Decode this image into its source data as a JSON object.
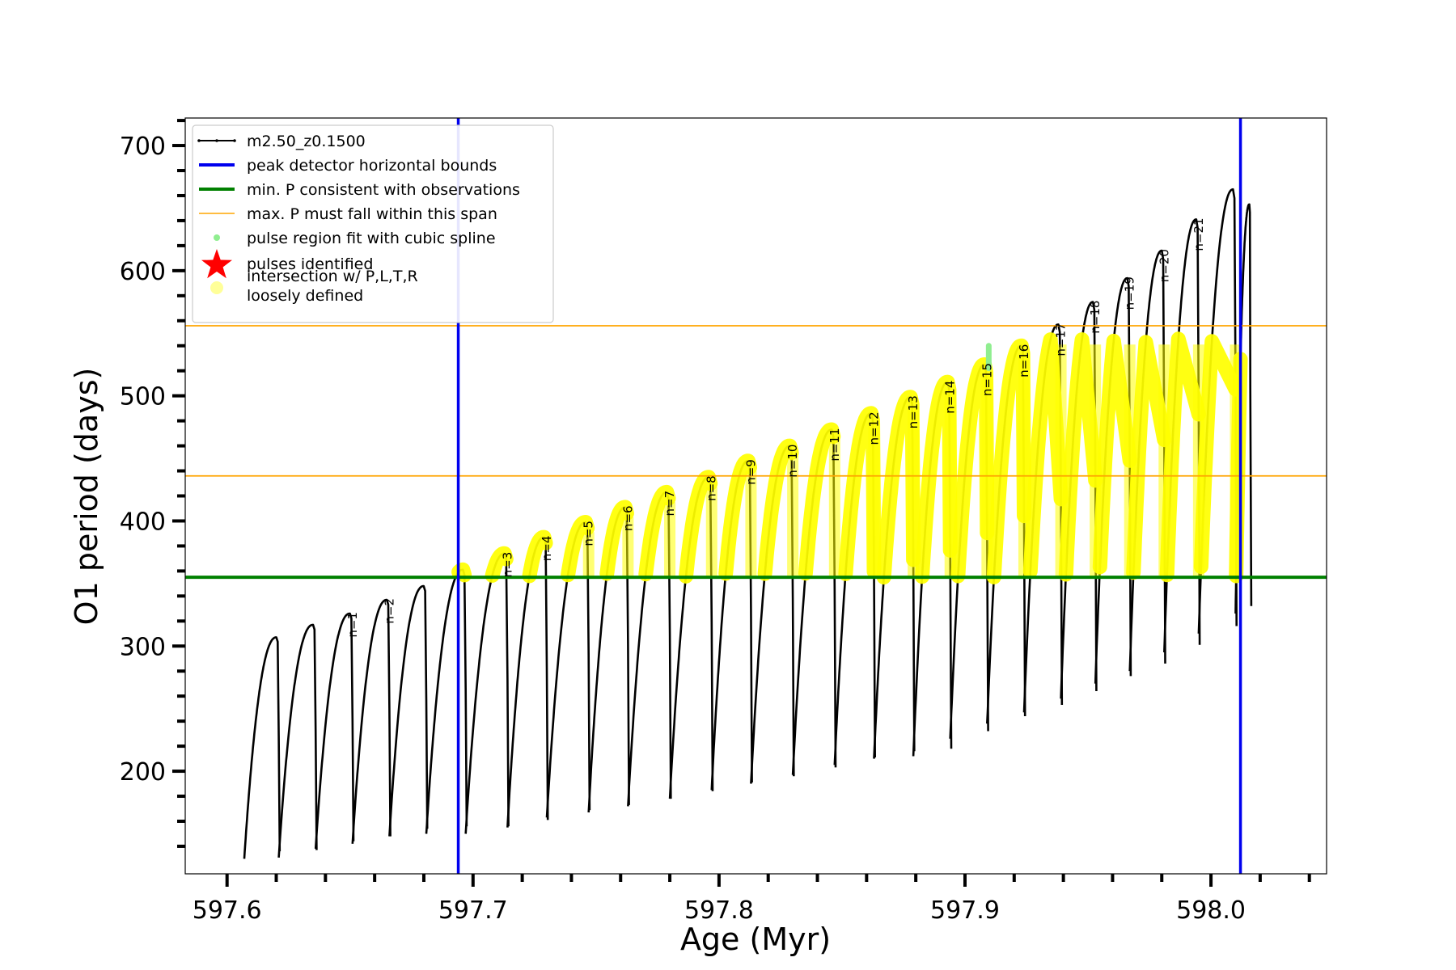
{
  "chart_data": {
    "type": "line",
    "title": "",
    "xlabel": "Age (Myr)",
    "ylabel": "O1 period (days)",
    "xlim": [
      597.583,
      598.047
    ],
    "ylim": [
      118,
      722
    ],
    "xticks": [
      597.6,
      597.7,
      597.8,
      597.9,
      598.0
    ],
    "xtick_labels": [
      "597.6",
      "597.7",
      "597.8",
      "597.9",
      "598.0"
    ],
    "yticks": [
      200,
      300,
      400,
      500,
      600,
      700
    ],
    "ytick_labels": [
      "200",
      "300",
      "400",
      "500",
      "600",
      "700"
    ],
    "grid": false,
    "legend_position": "top-left",
    "legend": [
      {
        "label": "m2.50_z0.1500",
        "kind": "line-marker",
        "color": "#000000"
      },
      {
        "label": "peak detector horizontal bounds",
        "kind": "line",
        "color": "#0000ee"
      },
      {
        "label": "min. P consistent with observations",
        "kind": "line",
        "color": "#008000"
      },
      {
        "label": "max. P must fall within this span",
        "kind": "line",
        "color": "#ffa500"
      },
      {
        "label": "pulse region fit with cubic spline",
        "kind": "dot",
        "color": "#90ee90"
      },
      {
        "label": "pulses identified",
        "kind": "star",
        "color": "#ff0000"
      },
      {
        "label": "intersection w/ P,L,T,R\nloosely defined",
        "kind": "dot",
        "color": "#ffff99"
      }
    ],
    "series_name": "m2.50_z0.1500",
    "series_color": "#000000",
    "highlight_color": "#ffff00",
    "spline_color": "#90ee90",
    "vertical_bounds": [
      597.694,
      598.012
    ],
    "vertical_bounds_color": "#0000ee",
    "min_period": 355,
    "min_period_color": "#008000",
    "max_period_span": [
      436,
      556
    ],
    "max_period_color": "#ffa500",
    "cycles": [
      {
        "start": 597.607,
        "end": 597.621,
        "base": 130,
        "peak": 307,
        "label": ""
      },
      {
        "start": 597.621,
        "end": 597.636,
        "base": 131,
        "peak": 317,
        "label": ""
      },
      {
        "start": 597.636,
        "end": 597.651,
        "base": 138,
        "peak": 326,
        "label": "n=1"
      },
      {
        "start": 597.651,
        "end": 597.666,
        "base": 142,
        "peak": 337,
        "label": "n=2"
      },
      {
        "start": 597.666,
        "end": 597.681,
        "base": 148,
        "peak": 348,
        "label": ""
      },
      {
        "start": 597.681,
        "end": 597.697,
        "base": 150,
        "peak": 361,
        "label": ""
      },
      {
        "start": 597.697,
        "end": 597.714,
        "base": 150,
        "peak": 374,
        "label": "n=3"
      },
      {
        "start": 597.714,
        "end": 597.73,
        "base": 155,
        "peak": 387,
        "label": "n=4"
      },
      {
        "start": 597.73,
        "end": 597.747,
        "base": 163,
        "peak": 399,
        "label": "n=5"
      },
      {
        "start": 597.747,
        "end": 597.763,
        "base": 167,
        "peak": 411,
        "label": "n=6"
      },
      {
        "start": 597.763,
        "end": 597.78,
        "base": 172,
        "peak": 423,
        "label": "n=7"
      },
      {
        "start": 597.78,
        "end": 597.797,
        "base": 178,
        "peak": 435,
        "label": "n=8"
      },
      {
        "start": 597.797,
        "end": 597.813,
        "base": 185,
        "peak": 448,
        "label": "n=9"
      },
      {
        "start": 597.813,
        "end": 597.83,
        "base": 190,
        "peak": 460,
        "label": "n=10"
      },
      {
        "start": 597.83,
        "end": 597.847,
        "base": 197,
        "peak": 473,
        "label": "n=11"
      },
      {
        "start": 597.847,
        "end": 597.863,
        "base": 205,
        "peak": 486,
        "label": "n=12"
      },
      {
        "start": 597.863,
        "end": 597.879,
        "base": 210,
        "peak": 499,
        "label": "n=13"
      },
      {
        "start": 597.879,
        "end": 597.894,
        "base": 212,
        "peak": 511,
        "label": "n=14"
      },
      {
        "start": 597.894,
        "end": 597.909,
        "base": 226,
        "peak": 525,
        "label": "n=15"
      },
      {
        "start": 597.909,
        "end": 597.924,
        "base": 238,
        "peak": 540,
        "label": "n=16"
      },
      {
        "start": 597.924,
        "end": 597.939,
        "base": 247,
        "peak": 557,
        "label": "n=17"
      },
      {
        "start": 597.939,
        "end": 597.953,
        "base": 258,
        "peak": 575,
        "label": "n=18"
      },
      {
        "start": 597.953,
        "end": 597.967,
        "base": 270,
        "peak": 594,
        "label": "n=19"
      },
      {
        "start": 597.967,
        "end": 597.981,
        "base": 280,
        "peak": 616,
        "label": "n=20"
      },
      {
        "start": 597.981,
        "end": 597.995,
        "base": 295,
        "peak": 641,
        "label": "n=21"
      },
      {
        "start": 597.995,
        "end": 598.01,
        "base": 310,
        "peak": 665,
        "label": ""
      },
      {
        "start": 598.01,
        "end": 598.016,
        "base": 326,
        "peak": 653,
        "label": ""
      }
    ]
  }
}
